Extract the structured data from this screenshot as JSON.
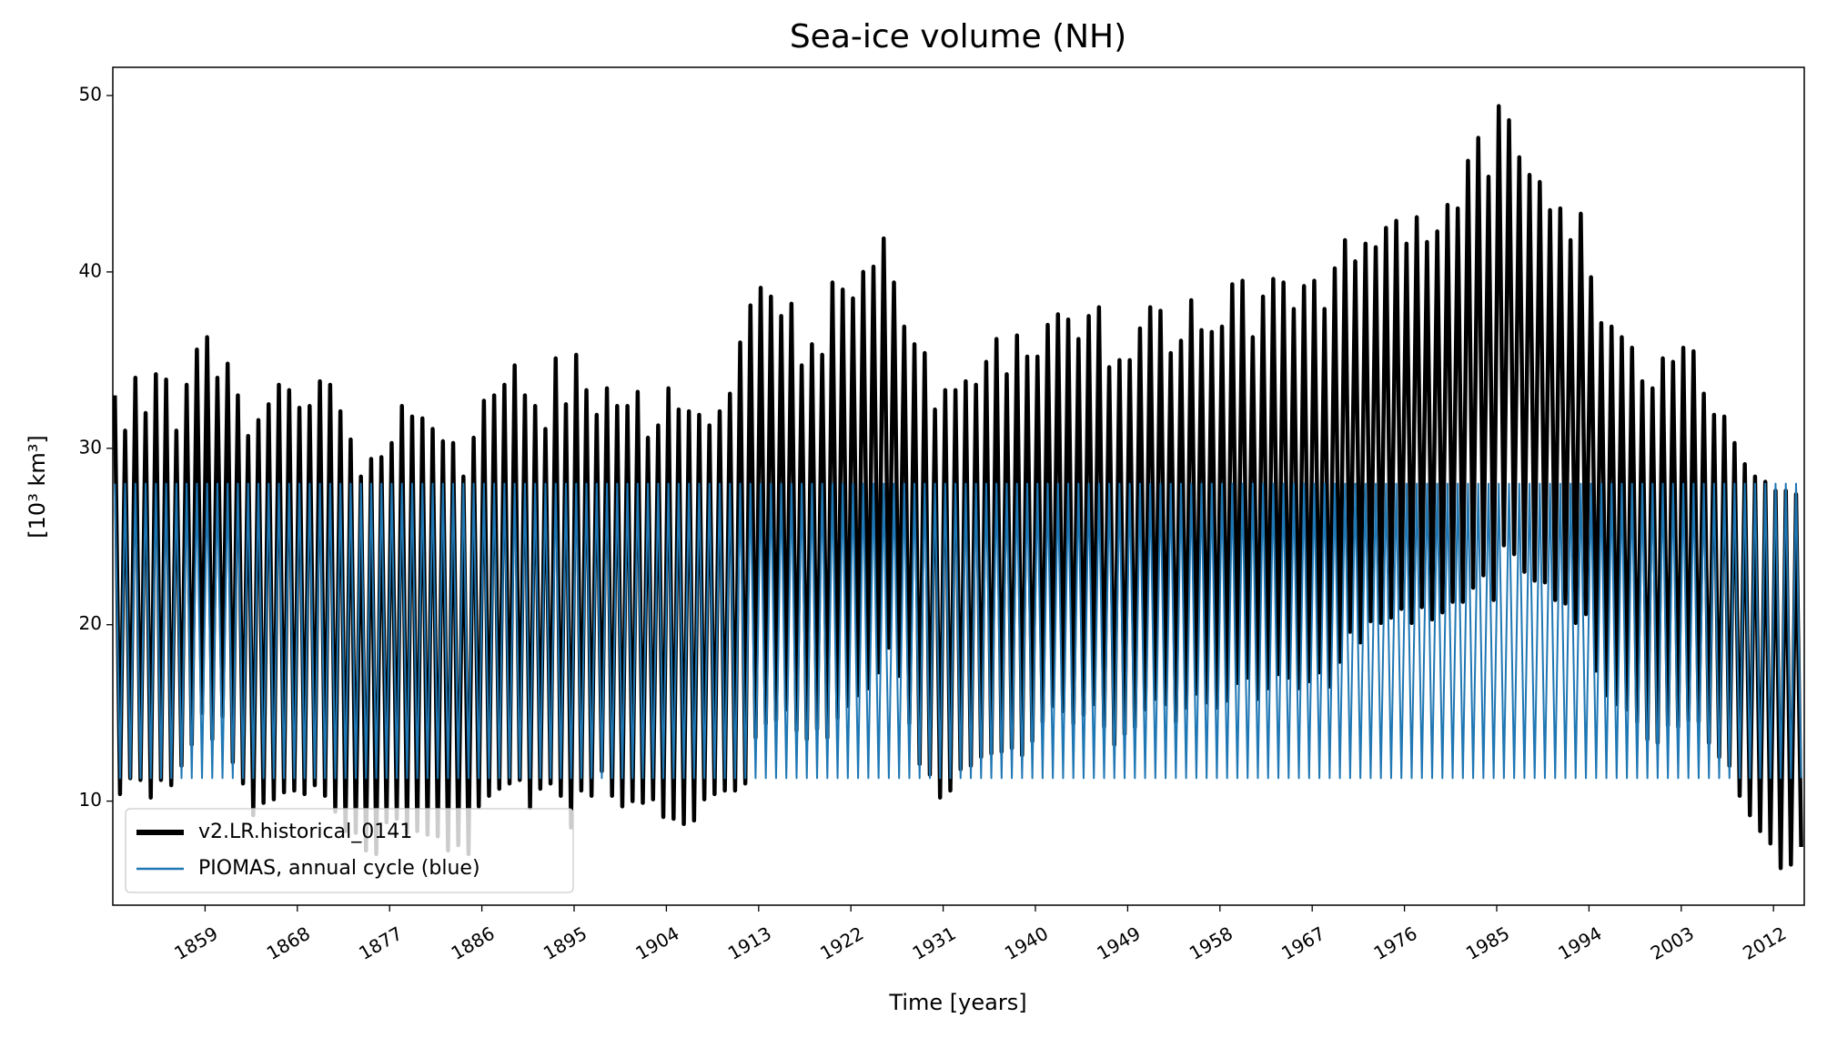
{
  "chart_data": {
    "type": "line",
    "title": "Sea-ice volume (NH)",
    "xlabel": "Time [years]",
    "ylabel": "[10³ km³]",
    "xlim": [
      1850,
      2015
    ],
    "ylim": [
      4.1,
      51.6
    ],
    "xticks": [
      1859,
      1868,
      1877,
      1886,
      1895,
      1904,
      1913,
      1922,
      1931,
      1940,
      1949,
      1958,
      1967,
      1976,
      1985,
      1994,
      2003,
      2012
    ],
    "yticks": [
      10,
      20,
      30,
      40,
      50
    ],
    "legend": "lower left",
    "x": [
      1850.2,
      1850.7,
      1851.2,
      1851.7,
      1852.2,
      1852.7,
      1853.2,
      1853.7,
      1854.2,
      1854.7,
      1855.2,
      1855.7,
      1856.2,
      1856.7,
      1857.2,
      1857.7,
      1858.2,
      1858.7,
      1859.2,
      1859.7,
      1860.2,
      1860.7,
      1861.2,
      1861.7,
      1862.2,
      1862.7,
      1863.2,
      1863.7,
      1864.2,
      1864.7,
      1865.2,
      1865.7,
      1866.2,
      1866.7,
      1867.2,
      1867.7,
      1868.2,
      1868.7,
      1869.2,
      1869.7,
      1870.2,
      1870.7,
      1871.2,
      1871.7,
      1872.2,
      1872.7,
      1873.2,
      1873.7,
      1874.2,
      1874.7,
      1875.2,
      1875.7,
      1876.2,
      1876.7,
      1877.2,
      1877.7,
      1878.2,
      1878.7,
      1879.2,
      1879.7,
      1880.2,
      1880.7,
      1881.2,
      1881.7,
      1882.2,
      1882.7,
      1883.2,
      1883.7,
      1884.2,
      1884.7,
      1885.2,
      1885.7,
      1886.2,
      1886.7,
      1887.2,
      1887.7,
      1888.2,
      1888.7,
      1889.2,
      1889.7,
      1890.2,
      1890.7,
      1891.2,
      1891.7,
      1892.2,
      1892.7,
      1893.2,
      1893.7,
      1894.2,
      1894.7,
      1895.2,
      1895.7,
      1896.2,
      1896.7,
      1897.2,
      1897.7,
      1898.2,
      1898.7,
      1899.2,
      1899.7,
      1900.2,
      1900.7,
      1901.2,
      1901.7,
      1902.2,
      1902.7,
      1903.2,
      1903.7,
      1904.2,
      1904.7,
      1905.2,
      1905.7,
      1906.2,
      1906.7,
      1907.2,
      1907.7,
      1908.2,
      1908.7,
      1909.2,
      1909.7,
      1910.2,
      1910.7,
      1911.2,
      1911.7,
      1912.2,
      1912.7,
      1913.2,
      1913.7,
      1914.2,
      1914.7,
      1915.2,
      1915.7,
      1916.2,
      1916.7,
      1917.2,
      1917.7,
      1918.2,
      1918.7,
      1919.2,
      1919.7,
      1920.2,
      1920.7,
      1921.2,
      1921.7,
      1922.2,
      1922.7,
      1923.2,
      1923.7,
      1924.2,
      1924.7,
      1925.2,
      1925.7,
      1926.2,
      1926.7,
      1927.2,
      1927.7,
      1928.2,
      1928.7,
      1929.2,
      1929.7,
      1930.2,
      1930.7,
      1931.2,
      1931.7,
      1932.2,
      1932.7,
      1933.2,
      1933.7,
      1934.2,
      1934.7,
      1935.2,
      1935.7,
      1936.2,
      1936.7,
      1937.2,
      1937.7,
      1938.2,
      1938.7,
      1939.2,
      1939.7,
      1940.2,
      1940.7,
      1941.2,
      1941.7,
      1942.2,
      1942.7,
      1943.2,
      1943.7,
      1944.2,
      1944.7,
      1945.2,
      1945.7,
      1946.2,
      1946.7,
      1947.2,
      1947.7,
      1948.2,
      1948.7,
      1949.2,
      1949.7,
      1950.2,
      1950.7,
      1951.2,
      1951.7,
      1952.2,
      1952.7,
      1953.2,
      1953.7,
      1954.2,
      1954.7,
      1955.2,
      1955.7,
      1956.2,
      1956.7,
      1957.2,
      1957.7,
      1958.2,
      1958.7,
      1959.2,
      1959.7,
      1960.2,
      1960.7,
      1961.2,
      1961.7,
      1962.2,
      1962.7,
      1963.2,
      1963.7,
      1964.2,
      1964.7,
      1965.2,
      1965.7,
      1966.2,
      1966.7,
      1967.2,
      1967.7,
      1968.2,
      1968.7,
      1969.2,
      1969.7,
      1970.2,
      1970.7,
      1971.2,
      1971.7,
      1972.2,
      1972.7,
      1973.2,
      1973.7,
      1974.2,
      1974.7,
      1975.2,
      1975.7,
      1976.2,
      1976.7,
      1977.2,
      1977.7,
      1978.2,
      1978.7,
      1979.2,
      1979.7,
      1980.2,
      1980.7,
      1981.2,
      1981.7,
      1982.2,
      1982.7,
      1983.2,
      1983.7,
      1984.2,
      1984.7,
      1985.2,
      1985.7,
      1986.2,
      1986.7,
      1987.2,
      1987.7,
      1988.2,
      1988.7,
      1989.2,
      1989.7,
      1990.2,
      1990.7,
      1991.2,
      1991.7,
      1992.2,
      1992.7,
      1993.2,
      1993.7,
      1994.2,
      1994.7,
      1995.2,
      1995.7,
      1996.2,
      1996.7,
      1997.2,
      1997.7,
      1998.2,
      1998.7,
      1999.2,
      1999.7,
      2000.2,
      2000.7,
      2001.2,
      2001.7,
      2002.2,
      2002.7,
      2003.2,
      2003.7,
      2004.2,
      2004.7,
      2005.2,
      2005.7,
      2006.2,
      2006.7,
      2007.2,
      2007.7,
      2008.2,
      2008.7,
      2009.2,
      2009.7,
      2010.2,
      2010.7,
      2011.2,
      2011.7,
      2012.2,
      2012.7,
      2013.2,
      2013.7,
      2014.2,
      2014.7
    ],
    "series": [
      {
        "name": "v2.LR.historical_0141",
        "color": "#000000",
        "values": [
          33,
          10.4,
          31,
          11.3,
          34,
          11.2,
          32,
          10.2,
          34.2,
          11.2,
          33.9,
          10.9,
          31,
          12,
          33.6,
          13.2,
          35.6,
          15,
          36.3,
          13.5,
          34,
          14.8,
          34.8,
          12.2,
          33,
          11,
          30.7,
          9.2,
          31.6,
          9.9,
          32.5,
          10.1,
          33.6,
          10.5,
          33.3,
          10.6,
          32.3,
          10.4,
          32.4,
          10.9,
          33.8,
          10.3,
          33.6,
          9.4,
          32.1,
          8.3,
          30.5,
          8.2,
          28.4,
          7.2,
          29.4,
          7,
          29.5,
          8.8,
          30.3,
          9,
          32.4,
          8.2,
          31.8,
          8.3,
          31.7,
          8.1,
          31.1,
          8,
          30.4,
          7.2,
          30.3,
          7.5,
          28.4,
          7,
          30.6,
          9.7,
          32.7,
          10.3,
          33,
          10.7,
          33.6,
          11,
          34.7,
          11.2,
          33,
          9.6,
          32.4,
          10.7,
          31.1,
          11,
          35.1,
          10.3,
          32.5,
          8.5,
          35.3,
          10.6,
          33.3,
          10.3,
          31.9,
          11.7,
          33.4,
          10.3,
          32.4,
          9.7,
          32.4,
          10,
          33.2,
          9.9,
          30.6,
          10.1,
          31.3,
          9.1,
          33.4,
          9,
          32.2,
          8.7,
          32.1,
          8.9,
          31.9,
          10.1,
          31.3,
          10.4,
          32.1,
          10.6,
          33.1,
          10.6,
          36,
          11,
          38.1,
          13.6,
          39.1,
          14.4,
          38.6,
          14.6,
          37.5,
          15.2,
          38.2,
          14,
          34.7,
          13.5,
          35.9,
          14.1,
          35.3,
          13.6,
          39.4,
          14.7,
          39,
          15.4,
          38.5,
          16,
          40,
          16.4,
          40.3,
          17.3,
          41.9,
          18.7,
          39.4,
          17.1,
          36.9,
          14.4,
          35.9,
          12.1,
          35.4,
          11.5,
          32.2,
          10.2,
          33.3,
          10.6,
          33.3,
          11.8,
          33.8,
          12,
          33.6,
          12.5,
          34.9,
          12.7,
          36.2,
          12.8,
          34.2,
          13,
          36.4,
          12.6,
          35.2,
          13.4,
          35.2,
          14.5,
          37,
          15.4,
          37.6,
          15.1,
          37.3,
          14.4,
          36.2,
          14.9,
          37.5,
          15.5,
          38,
          14.2,
          34.6,
          13.2,
          35,
          13.8,
          35,
          14.2,
          36.8,
          15.2,
          38,
          15.8,
          37.8,
          15.5,
          35.4,
          14.5,
          36.1,
          15.3,
          38.4,
          16.1,
          36.7,
          15.6,
          36.6,
          15.3,
          36.9,
          15.7,
          39.3,
          16.7,
          39.5,
          17,
          36.3,
          15.8,
          38.6,
          16.4,
          39.6,
          17.2,
          39.4,
          17,
          37.9,
          16.4,
          39.2,
          16.8,
          39.5,
          17.3,
          37.9,
          16.5,
          40.2,
          17.9,
          41.8,
          19.6,
          40.6,
          19,
          41.6,
          20.2,
          41.4,
          20.1,
          42.5,
          20.4,
          42.9,
          20.9,
          41.6,
          20.1,
          43.1,
          21,
          41.7,
          20.3,
          42.3,
          20.7,
          43.8,
          21.3,
          43.6,
          21.3,
          46.3,
          22.1,
          47.6,
          22.8,
          45.4,
          21.4,
          49.4,
          24.5,
          48.6,
          24,
          46.5,
          23,
          45.5,
          22.5,
          45.1,
          22.4,
          43.5,
          21.4,
          43.6,
          21.2,
          41.8,
          20.1,
          43.3,
          20.6,
          39.7,
          17.4,
          37.1,
          16,
          36.9,
          15.5,
          36.3,
          15.2,
          35.7,
          14.5,
          33.8,
          13.5,
          33.4,
          13.3,
          35.1,
          14.3,
          34.9,
          14.2,
          35.7,
          14.6,
          35.5,
          14.5,
          33.1,
          13.3,
          31.9,
          12.5,
          31.8,
          12,
          30.3,
          10.3,
          29.1,
          9.2,
          28.4,
          8.3,
          28.1,
          7.6,
          27.6,
          6.2,
          27.6,
          6.4,
          27.4,
          7.4
        ]
      },
      {
        "name": "PIOMAS, annual cycle (blue)",
        "color": "#1f77b4",
        "values": [
          28,
          11.3,
          28,
          11.3,
          28,
          11.3,
          28,
          11.3,
          28,
          11.3,
          28,
          11.3,
          28,
          11.3,
          28,
          11.3,
          28,
          11.3,
          28,
          11.3,
          28,
          11.3,
          28,
          11.3,
          28,
          11.3,
          28,
          11.3,
          28,
          11.3,
          28,
          11.3,
          28,
          11.3,
          28,
          11.3,
          28,
          11.3,
          28,
          11.3,
          28,
          11.3,
          28,
          11.3,
          28,
          11.3,
          28,
          11.3,
          28,
          11.3,
          28,
          11.3,
          28,
          11.3,
          28,
          11.3,
          28,
          11.3,
          28,
          11.3,
          28,
          11.3,
          28,
          11.3,
          28,
          11.3,
          28,
          11.3,
          28,
          11.3,
          28,
          11.3,
          28,
          11.3,
          28,
          11.3,
          28,
          11.3,
          28,
          11.3,
          28,
          11.3,
          28,
          11.3,
          28,
          11.3,
          28,
          11.3,
          28,
          11.3,
          28,
          11.3,
          28,
          11.3,
          28,
          11.3,
          28,
          11.3,
          28,
          11.3,
          28,
          11.3,
          28,
          11.3,
          28,
          11.3,
          28,
          11.3,
          28,
          11.3,
          28,
          11.3,
          28,
          11.3,
          28,
          11.3,
          28,
          11.3,
          28,
          11.3,
          28,
          11.3,
          28,
          11.3,
          28,
          11.3,
          28,
          11.3,
          28,
          11.3,
          28,
          11.3,
          28,
          11.3,
          28,
          11.3,
          28,
          11.3,
          28,
          11.3,
          28,
          11.3,
          28,
          11.3,
          28,
          11.3,
          28,
          11.3,
          28,
          11.3,
          28,
          11.3,
          28,
          11.3,
          28,
          11.3,
          28,
          11.3,
          28,
          11.3,
          28,
          11.3,
          28,
          11.3,
          28,
          11.3,
          28,
          11.3,
          28,
          11.3,
          28,
          11.3,
          28,
          11.3,
          28,
          11.3,
          28,
          11.3,
          28,
          11.3,
          28,
          11.3,
          28,
          11.3,
          28,
          11.3,
          28,
          11.3,
          28,
          11.3,
          28,
          11.3,
          28,
          11.3,
          28,
          11.3,
          28,
          11.3,
          28,
          11.3,
          28,
          11.3,
          28,
          11.3,
          28,
          11.3,
          28,
          11.3,
          28,
          11.3,
          28,
          11.3,
          28,
          11.3,
          28,
          11.3,
          28,
          11.3,
          28,
          11.3,
          28,
          11.3,
          28,
          11.3,
          28,
          11.3,
          28,
          11.3,
          28,
          11.3,
          28,
          11.3,
          28,
          11.3,
          28,
          11.3,
          28,
          11.3,
          28,
          11.3,
          28,
          11.3,
          28,
          11.3,
          28,
          11.3,
          28,
          11.3,
          28,
          11.3,
          28,
          11.3,
          28,
          11.3,
          28,
          11.3,
          28,
          11.3,
          28,
          11.3,
          28,
          11.3,
          28,
          11.3,
          28,
          11.3,
          28,
          11.3,
          28,
          11.3,
          28,
          11.3,
          28,
          11.3,
          28,
          11.3,
          28,
          11.3,
          28,
          11.3,
          28,
          11.3,
          28,
          11.3,
          28,
          11.3,
          28,
          11.3,
          28,
          11.3,
          28,
          11.3,
          28,
          11.3,
          28,
          11.3,
          28,
          11.3,
          28,
          11.3,
          28,
          11.3,
          28,
          11.3,
          28,
          11.3,
          28,
          11.3,
          28,
          11.3,
          28,
          11.3,
          28,
          11.3,
          28,
          11.3,
          28,
          11.3,
          28,
          11.3,
          28,
          11.3,
          28,
          11.3,
          28,
          11.3,
          28,
          11.3,
          28,
          11.3
        ]
      }
    ]
  }
}
